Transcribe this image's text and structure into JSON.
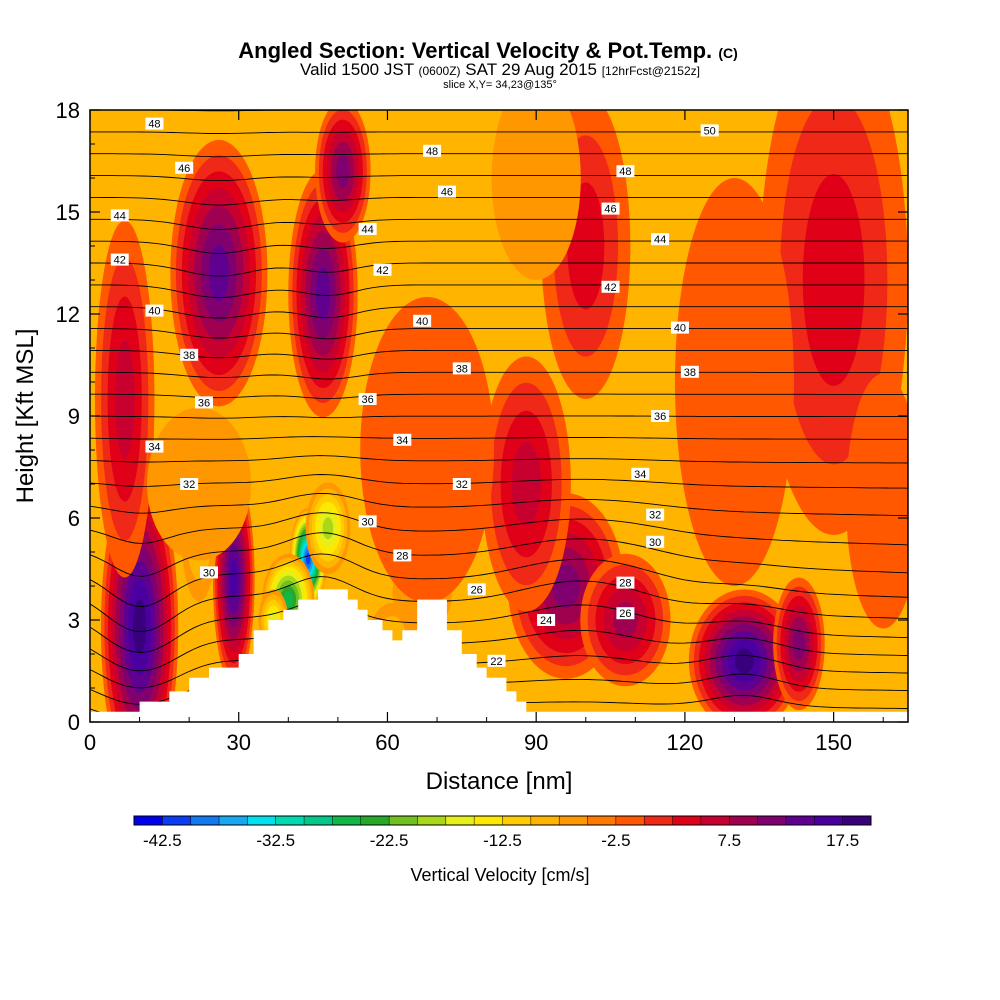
{
  "header": {
    "title": "Angled Section: Vertical Velocity & Pot.Temp.",
    "title_suffix": "(C)",
    "valid_prefix": "Valid 1500 JST",
    "valid_utc": "(0600Z)",
    "valid_date": "SAT 29 Aug 2015",
    "forecast": "[12hrFcst@2152z]",
    "slice": "slice X,Y= 34,23@135°"
  },
  "chart_data": {
    "type": "heatmap",
    "xlabel": "Distance [nm]",
    "ylabel": "Height [Kft MSL]",
    "xlim": [
      0,
      165
    ],
    "ylim": [
      0,
      18
    ],
    "xticks": [
      0,
      30,
      60,
      90,
      120,
      150
    ],
    "yticks": [
      0,
      3,
      6,
      9,
      12,
      15,
      18
    ],
    "colorbar": {
      "label": "Vertical Velocity [cm/s]",
      "min": -45,
      "max": 20,
      "step": 2.5,
      "tick_values": [
        -42.5,
        -32.5,
        -22.5,
        -12.5,
        -2.5,
        7.5,
        17.5
      ],
      "tick_labels": [
        "-42.5",
        "-32.5",
        "-22.5",
        "-12.5",
        "-2.5",
        "7.5",
        "17.5"
      ],
      "colors": [
        "#0000f0",
        "#0a3cf5",
        "#1478f0",
        "#18a8f0",
        "#00e0f0",
        "#00d8b0",
        "#00c888",
        "#10b848",
        "#28a828",
        "#70c020",
        "#a8d818",
        "#e6f018",
        "#ffe800",
        "#ffcc00",
        "#ffb400",
        "#ff9800",
        "#ff7800",
        "#ff5800",
        "#f02818",
        "#e00018",
        "#c80030",
        "#a00050",
        "#800070",
        "#600090",
        "#4a00a0",
        "#38007a"
      ]
    },
    "terrain_profile": [
      [
        0,
        0.3
      ],
      [
        10,
        0.3
      ],
      [
        10,
        0.6
      ],
      [
        16,
        0.6
      ],
      [
        16,
        0.9
      ],
      [
        20,
        0.9
      ],
      [
        20,
        1.3
      ],
      [
        24,
        1.3
      ],
      [
        24,
        1.6
      ],
      [
        30,
        1.6
      ],
      [
        30,
        2.0
      ],
      [
        33,
        2.0
      ],
      [
        33,
        2.7
      ],
      [
        36,
        2.7
      ],
      [
        36,
        3.0
      ],
      [
        39,
        3.0
      ],
      [
        39,
        3.3
      ],
      [
        42,
        3.3
      ],
      [
        42,
        3.6
      ],
      [
        46,
        3.6
      ],
      [
        46,
        3.9
      ],
      [
        52,
        3.9
      ],
      [
        52,
        3.6
      ],
      [
        54,
        3.6
      ],
      [
        54,
        3.3
      ],
      [
        56,
        3.3
      ],
      [
        56,
        3.0
      ],
      [
        59,
        3.0
      ],
      [
        59,
        2.7
      ],
      [
        61,
        2.7
      ],
      [
        61,
        2.4
      ],
      [
        63,
        2.4
      ],
      [
        63,
        2.7
      ],
      [
        66,
        2.7
      ],
      [
        66,
        3.6
      ],
      [
        72,
        3.6
      ],
      [
        72,
        2.7
      ],
      [
        75,
        2.7
      ],
      [
        75,
        2.0
      ],
      [
        78,
        2.0
      ],
      [
        78,
        1.6
      ],
      [
        80,
        1.6
      ],
      [
        80,
        1.3
      ],
      [
        84,
        1.3
      ],
      [
        84,
        0.9
      ],
      [
        86,
        0.9
      ],
      [
        86,
        0.6
      ],
      [
        88,
        0.6
      ],
      [
        88,
        0.3
      ],
      [
        165,
        0.3
      ]
    ],
    "velocity_features": [
      {
        "x": 10,
        "y": 2.8,
        "rx": 6,
        "ry": 3.6,
        "value": 17,
        "width": 1.3
      },
      {
        "x": 29,
        "y": 4.2,
        "rx": 3.5,
        "ry": 2.6,
        "value": 15,
        "width": 1.2
      },
      {
        "x": 26,
        "y": 13.2,
        "rx": 7,
        "ry": 2.8,
        "value": 12,
        "width": 1.4
      },
      {
        "x": 47,
        "y": 12.6,
        "rx": 5,
        "ry": 2.6,
        "value": 12,
        "width": 1.4
      },
      {
        "x": 51,
        "y": 16.2,
        "rx": 4,
        "ry": 1.5,
        "value": 8,
        "width": 1.4
      },
      {
        "x": 132,
        "y": 1.8,
        "rx": 8,
        "ry": 1.5,
        "value": 17,
        "width": 1.4
      },
      {
        "x": 143,
        "y": 2.3,
        "rx": 4,
        "ry": 1.5,
        "value": 8,
        "width": 1.3
      },
      {
        "x": 96,
        "y": 4.0,
        "rx": 9,
        "ry": 2.1,
        "value": 9,
        "width": 1.3
      },
      {
        "x": 108,
        "y": 3.0,
        "rx": 7,
        "ry": 1.5,
        "value": 6,
        "width": 1.3
      },
      {
        "x": 7,
        "y": 9.5,
        "rx": 4,
        "ry": 3.5,
        "value": 4,
        "width": 1.5
      },
      {
        "x": 88,
        "y": 7.0,
        "rx": 6,
        "ry": 2.5,
        "value": 3,
        "width": 1.5
      },
      {
        "x": 150,
        "y": 13.0,
        "rx": 10,
        "ry": 5.0,
        "value": 2,
        "width": 1.5
      },
      {
        "x": 100,
        "y": 14.0,
        "rx": 6,
        "ry": 3.0,
        "value": 1,
        "width": 1.5
      },
      {
        "x": 44,
        "y": 4.8,
        "rx": 2.5,
        "ry": 1.0,
        "value": -42,
        "width": 1.5
      },
      {
        "x": 40,
        "y": 3.6,
        "rx": 3.5,
        "ry": 0.9,
        "value": -26,
        "width": 1.5
      },
      {
        "x": 48,
        "y": 5.7,
        "rx": 3.0,
        "ry": 0.9,
        "value": -20,
        "width": 1.5
      },
      {
        "x": 37,
        "y": 3.0,
        "rx": 2.0,
        "ry": 0.6,
        "value": -16,
        "width": 1.5
      },
      {
        "x": 22,
        "y": 5.8,
        "rx": 2.5,
        "ry": 1.5,
        "value": -12,
        "width": 1.5
      },
      {
        "x": 61,
        "y": 2.6,
        "rx": 3.0,
        "ry": 0.6,
        "value": -10,
        "width": 1.5
      },
      {
        "x": 67,
        "y": 3.8,
        "rx": 4.0,
        "ry": 0.8,
        "value": -6,
        "width": 1.5
      },
      {
        "x": 90,
        "y": 16.0,
        "rx": 6.0,
        "ry": 2.0,
        "value": -6,
        "width": 1.5
      },
      {
        "x": 22,
        "y": 7.0,
        "rx": 7.0,
        "ry": 1.5,
        "value": -6,
        "width": 1.5
      },
      {
        "x": 68,
        "y": 8.0,
        "rx": 9.0,
        "ry": 3.0,
        "value": -4,
        "width": 1.5
      },
      {
        "x": 130,
        "y": 10.0,
        "rx": 8.0,
        "ry": 4.0,
        "value": -4,
        "width": 1.5
      },
      {
        "x": 160,
        "y": 6.5,
        "rx": 5.0,
        "ry": 2.5,
        "value": -4,
        "width": 1.5
      }
    ],
    "isentrope_base": {
      "value_at_0": 22,
      "value_at_18": 50,
      "step": 1
    },
    "contour_labels": [
      {
        "x": 13,
        "y": 17.6,
        "text": "48"
      },
      {
        "x": 19,
        "y": 16.3,
        "text": "46"
      },
      {
        "x": 6,
        "y": 14.9,
        "text": "44"
      },
      {
        "x": 6,
        "y": 13.6,
        "text": "42"
      },
      {
        "x": 13,
        "y": 12.1,
        "text": "40"
      },
      {
        "x": 20,
        "y": 10.8,
        "text": "38"
      },
      {
        "x": 23,
        "y": 9.4,
        "text": "36"
      },
      {
        "x": 13,
        "y": 8.1,
        "text": "34"
      },
      {
        "x": 20,
        "y": 7.0,
        "text": "32"
      },
      {
        "x": 24,
        "y": 4.4,
        "text": "30"
      },
      {
        "x": 69,
        "y": 16.8,
        "text": "48"
      },
      {
        "x": 72,
        "y": 15.6,
        "text": "46"
      },
      {
        "x": 56,
        "y": 14.5,
        "text": "44"
      },
      {
        "x": 59,
        "y": 13.3,
        "text": "42"
      },
      {
        "x": 67,
        "y": 11.8,
        "text": "40"
      },
      {
        "x": 75,
        "y": 10.4,
        "text": "38"
      },
      {
        "x": 56,
        "y": 9.5,
        "text": "36"
      },
      {
        "x": 63,
        "y": 8.3,
        "text": "34"
      },
      {
        "x": 75,
        "y": 7.0,
        "text": "32"
      },
      {
        "x": 56,
        "y": 5.9,
        "text": "30"
      },
      {
        "x": 63,
        "y": 4.9,
        "text": "28"
      },
      {
        "x": 78,
        "y": 3.9,
        "text": "26"
      },
      {
        "x": 82,
        "y": 1.8,
        "text": "22"
      },
      {
        "x": 92,
        "y": 3.0,
        "text": "24"
      },
      {
        "x": 125,
        "y": 17.4,
        "text": "50"
      },
      {
        "x": 108,
        "y": 16.2,
        "text": "48"
      },
      {
        "x": 105,
        "y": 15.1,
        "text": "46"
      },
      {
        "x": 115,
        "y": 14.2,
        "text": "44"
      },
      {
        "x": 105,
        "y": 12.8,
        "text": "42"
      },
      {
        "x": 119,
        "y": 11.6,
        "text": "40"
      },
      {
        "x": 121,
        "y": 10.3,
        "text": "38"
      },
      {
        "x": 115,
        "y": 9.0,
        "text": "36"
      },
      {
        "x": 111,
        "y": 7.3,
        "text": "34"
      },
      {
        "x": 114,
        "y": 6.1,
        "text": "32"
      },
      {
        "x": 114,
        "y": 5.3,
        "text": "30"
      },
      {
        "x": 108,
        "y": 4.1,
        "text": "28"
      },
      {
        "x": 108,
        "y": 3.2,
        "text": "26"
      }
    ]
  }
}
